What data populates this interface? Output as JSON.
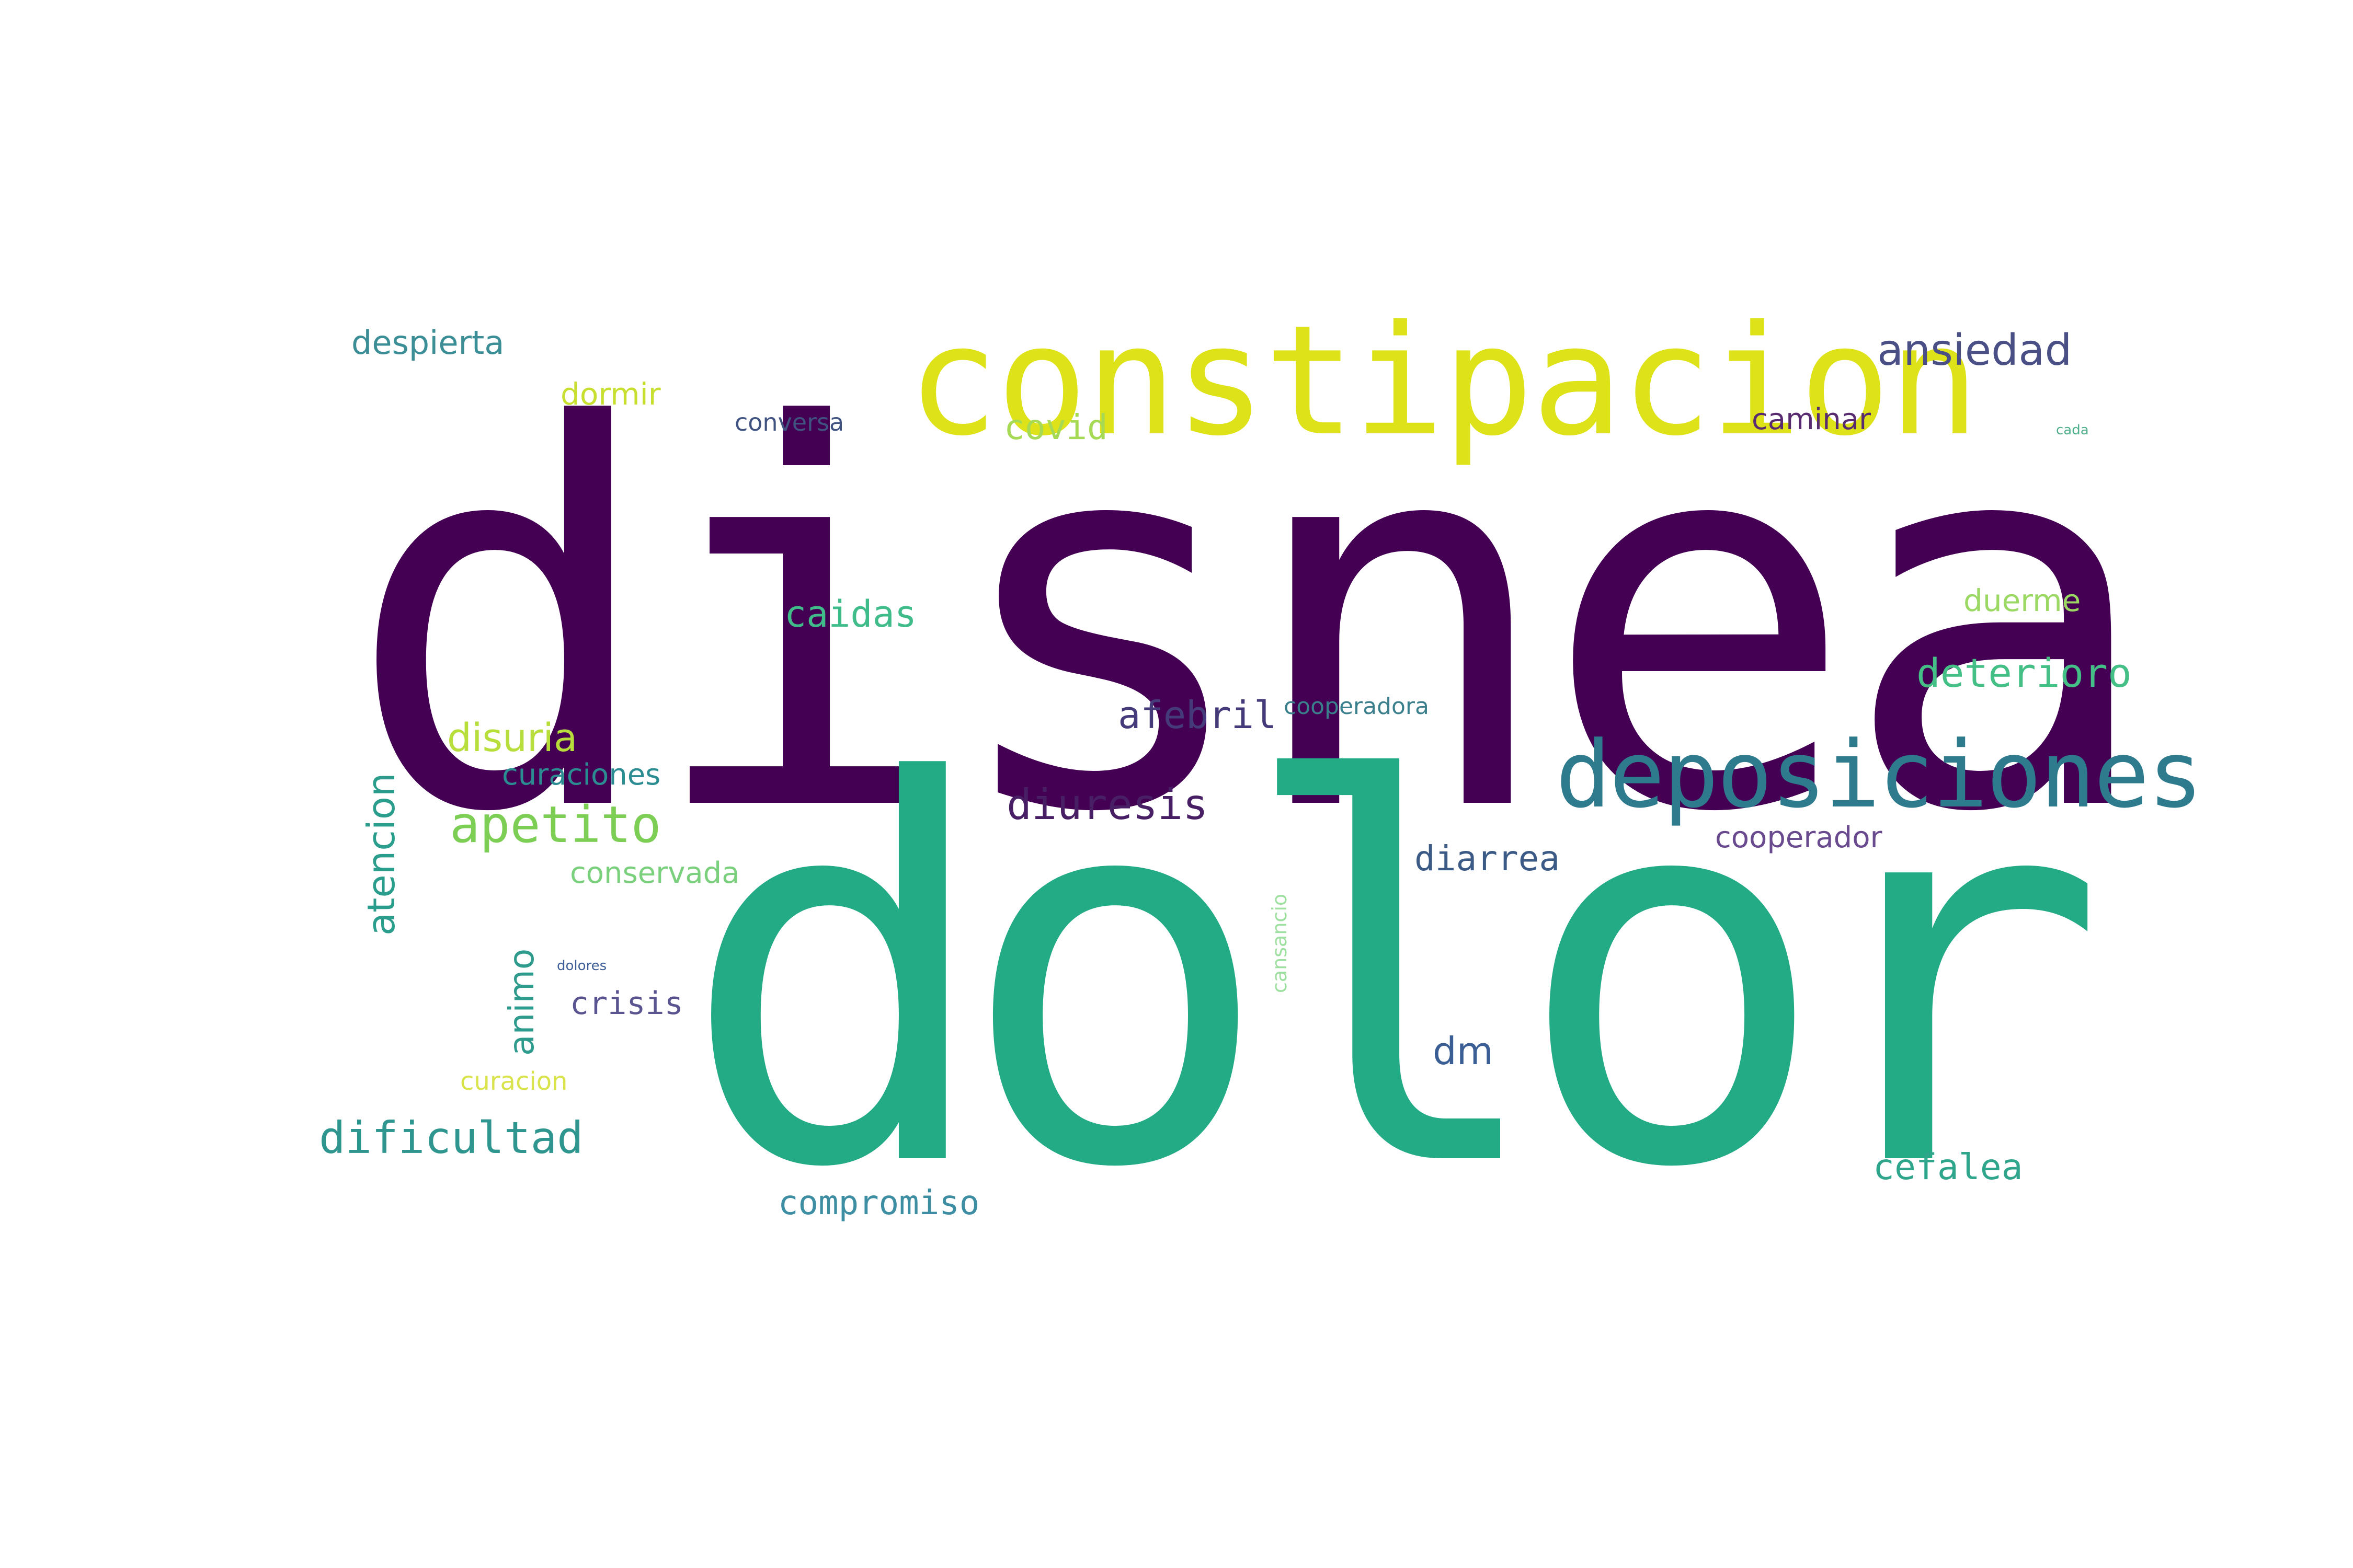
{
  "colors": {
    "background": "#ffffff",
    "dark_purple": "#440154",
    "indigo": "#46337e",
    "slate_blue": "#365c8d",
    "teal_blue": "#277f8e",
    "teal": "#1fa187",
    "green": "#4ac16d",
    "lime": "#a0da39",
    "yellow": "#fde725"
  },
  "words": [
    {
      "id": "disnea",
      "text": "disnea",
      "color": "#440154"
    },
    {
      "id": "dolor",
      "text": "dolor",
      "color": "#23ab86"
    },
    {
      "id": "constipacion",
      "text": "constipacion",
      "color": "#dde318"
    },
    {
      "id": "deposiciones",
      "text": "deposiciones",
      "color": "#2f7b8e"
    },
    {
      "id": "ansiedad",
      "text": "ansiedad",
      "color": "#4a4f86"
    },
    {
      "id": "despierta",
      "text": "despierta",
      "color": "#3b8e95"
    },
    {
      "id": "dormir",
      "text": "dormir",
      "color": "#c8df30"
    },
    {
      "id": "conversa",
      "text": "conversa",
      "color": "#40527f"
    },
    {
      "id": "covid",
      "text": "covid",
      "color": "#a6d954"
    },
    {
      "id": "caminar",
      "text": "caminar",
      "color": "#582a6f"
    },
    {
      "id": "cada",
      "text": "cada",
      "color": "#4fb08c"
    },
    {
      "id": "caidas",
      "text": "caidas",
      "color": "#3fbc8a"
    },
    {
      "id": "duerme",
      "text": "duerme",
      "color": "#9bd964"
    },
    {
      "id": "deterioro",
      "text": "deterioro",
      "color": "#44bf85"
    },
    {
      "id": "afebril",
      "text": "afebril",
      "color": "#453a7a"
    },
    {
      "id": "cooperadora",
      "text": "cooperadora",
      "color": "#3a7f8c"
    },
    {
      "id": "disuria",
      "text": "disuria",
      "color": "#b8de3c"
    },
    {
      "id": "curaciones",
      "text": "curaciones",
      "color": "#2b8c92"
    },
    {
      "id": "apetito",
      "text": "apetito",
      "color": "#7dce54"
    },
    {
      "id": "diuresis",
      "text": "diuresis",
      "color": "#481f65"
    },
    {
      "id": "atencion",
      "text": "atencion",
      "color": "#2b9d8c"
    },
    {
      "id": "conservada",
      "text": "conservada",
      "color": "#7ad07c"
    },
    {
      "id": "diarrea",
      "text": "diarrea",
      "color": "#3b5a86"
    },
    {
      "id": "cooperador",
      "text": "cooperador",
      "color": "#6a4a8e"
    },
    {
      "id": "cansancio",
      "text": "cansancio",
      "color": "#9ee0a0"
    },
    {
      "id": "animo",
      "text": "animo",
      "color": "#2e9b8d"
    },
    {
      "id": "dolores",
      "text": "dolores",
      "color": "#3e5f9a"
    },
    {
      "id": "crisis",
      "text": "crisis",
      "color": "#5a5590"
    },
    {
      "id": "dm",
      "text": "dm",
      "color": "#3b5e95"
    },
    {
      "id": "curacion",
      "text": "curacion",
      "color": "#d9e34b"
    },
    {
      "id": "dificultad",
      "text": "dificultad",
      "color": "#2e958f"
    },
    {
      "id": "compromiso",
      "text": "compromiso",
      "color": "#3d8ea3"
    },
    {
      "id": "cefalea",
      "text": "cefalea",
      "color": "#2fa58c"
    }
  ]
}
